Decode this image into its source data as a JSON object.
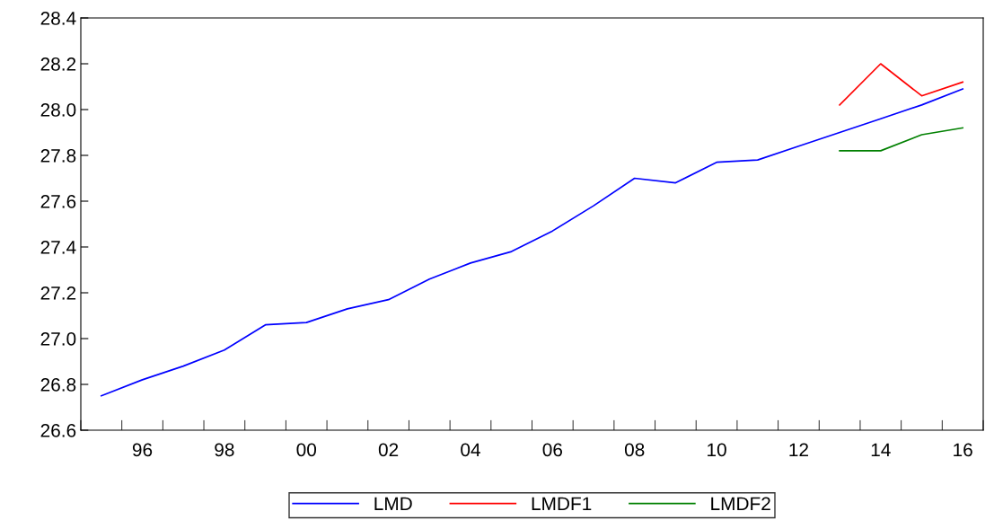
{
  "chart_data": {
    "type": "line",
    "x": [
      1995,
      1996,
      1997,
      1998,
      1999,
      2000,
      2001,
      2002,
      2003,
      2004,
      2005,
      2006,
      2007,
      2008,
      2009,
      2010,
      2011,
      2012,
      2013,
      2014,
      2015,
      2016
    ],
    "series": [
      {
        "name": "LMD",
        "color": "#0000ff",
        "values": [
          26.75,
          26.82,
          26.88,
          26.95,
          27.06,
          27.07,
          27.13,
          27.17,
          27.26,
          27.33,
          27.38,
          27.47,
          27.58,
          27.7,
          27.68,
          27.77,
          27.78,
          27.84,
          27.9,
          27.96,
          28.02,
          28.09
        ]
      },
      {
        "name": "LMDF1",
        "color": "#ff0000",
        "x": [
          2013,
          2014,
          2015,
          2016
        ],
        "values": [
          28.02,
          28.2,
          28.06,
          28.12
        ]
      },
      {
        "name": "LMDF2",
        "color": "#008000",
        "x": [
          2013,
          2014,
          2015,
          2016
        ],
        "values": [
          27.82,
          27.82,
          27.89,
          27.92
        ]
      }
    ],
    "xlim": [
      1994.5,
      2016.5
    ],
    "xticks": [
      {
        "value": 1994.5,
        "label": null
      },
      {
        "value": 1995.5,
        "label": null
      },
      {
        "value": 1996,
        "label": "96"
      },
      {
        "value": 1996.5,
        "label": null
      },
      {
        "value": 1997.5,
        "label": null
      },
      {
        "value": 1998,
        "label": "98"
      },
      {
        "value": 1998.5,
        "label": null
      },
      {
        "value": 1999.5,
        "label": null
      },
      {
        "value": 2000,
        "label": "00"
      },
      {
        "value": 2000.5,
        "label": null
      },
      {
        "value": 2001.5,
        "label": null
      },
      {
        "value": 2002,
        "label": "02"
      },
      {
        "value": 2002.5,
        "label": null
      },
      {
        "value": 2003.5,
        "label": null
      },
      {
        "value": 2004,
        "label": "04"
      },
      {
        "value": 2004.5,
        "label": null
      },
      {
        "value": 2005.5,
        "label": null
      },
      {
        "value": 2006,
        "label": "06"
      },
      {
        "value": 2006.5,
        "label": null
      },
      {
        "value": 2007.5,
        "label": null
      },
      {
        "value": 2008,
        "label": "08"
      },
      {
        "value": 2008.5,
        "label": null
      },
      {
        "value": 2009.5,
        "label": null
      },
      {
        "value": 2010,
        "label": "10"
      },
      {
        "value": 2010.5,
        "label": null
      },
      {
        "value": 2011.5,
        "label": null
      },
      {
        "value": 2012,
        "label": "12"
      },
      {
        "value": 2012.5,
        "label": null
      },
      {
        "value": 2013.5,
        "label": null
      },
      {
        "value": 2014,
        "label": "14"
      },
      {
        "value": 2014.5,
        "label": null
      },
      {
        "value": 2015.5,
        "label": null
      },
      {
        "value": 2016,
        "label": "16"
      },
      {
        "value": 2016.5,
        "label": null
      }
    ],
    "ylim": [
      26.6,
      28.4
    ],
    "yticks": [
      {
        "value": 26.6,
        "label": "26.6"
      },
      {
        "value": 26.8,
        "label": "26.8"
      },
      {
        "value": 27.0,
        "label": "27.0"
      },
      {
        "value": 27.2,
        "label": "27.2"
      },
      {
        "value": 27.4,
        "label": "27.4"
      },
      {
        "value": 27.6,
        "label": "27.6"
      },
      {
        "value": 27.8,
        "label": "27.8"
      },
      {
        "value": 28.0,
        "label": "28.0"
      },
      {
        "value": 28.2,
        "label": "28.2"
      },
      {
        "value": 28.4,
        "label": "28.4"
      }
    ],
    "grid": false,
    "legend": "bottom",
    "line_style": "solid",
    "marker": "none"
  }
}
